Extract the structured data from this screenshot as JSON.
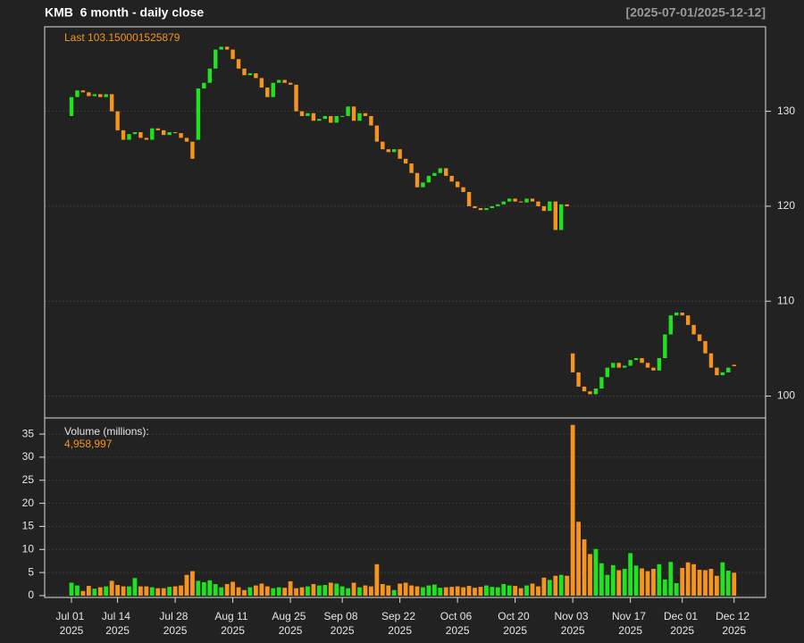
{
  "chart_data": {
    "type": "candlestick",
    "title": "KMB  6 month - daily close",
    "subtitle": "[2025-07-01/2025-12-12]",
    "annotation": "Last 103.150001525879",
    "up_color": "#1fe31f",
    "down_color": "#f7941d",
    "grid": true,
    "open": [
      129.5,
      131.5,
      132.2,
      132.0,
      131.6,
      131.8,
      131.5,
      131.8,
      130.0,
      128.0,
      127.0,
      127.6,
      127.8,
      127.2,
      127.0,
      128.2,
      128.0,
      127.5,
      127.8,
      127.7,
      127.2,
      126.8,
      127.0,
      132.4,
      133.0,
      134.5,
      136.5,
      136.8,
      136.5,
      135.5,
      134.5,
      133.8,
      134.0,
      133.5,
      132.5,
      131.5,
      133.0,
      133.3,
      133.0,
      132.8,
      130.0,
      129.5,
      129.8,
      129.0,
      129.2,
      129.5,
      128.8,
      129.5,
      129.5,
      130.5,
      129.0,
      129.8,
      129.5,
      128.5,
      126.8,
      126.0,
      125.7,
      126.0,
      125.0,
      124.5,
      123.5,
      122.0,
      122.5,
      123.2,
      123.5,
      124.0,
      123.2,
      122.6,
      122.0,
      121.5,
      120.0,
      119.8,
      119.6,
      119.8,
      120.0,
      120.2,
      120.5,
      120.8,
      120.5,
      120.4,
      120.8,
      120.5,
      120.0,
      119.5,
      120.5,
      117.5,
      120.2,
      104.5,
      102.5,
      101.0,
      100.5,
      100.2,
      100.8,
      102.0,
      103.0,
      103.5,
      103.0,
      103.2,
      103.8,
      104.0,
      103.5,
      103.0,
      102.7,
      104.0,
      106.5,
      108.5,
      108.8,
      108.5,
      107.5,
      106.5,
      105.8,
      104.5,
      103.0,
      102.2,
      102.5,
      103.3
    ],
    "close": [
      131.5,
      132.2,
      132.0,
      131.6,
      131.8,
      131.5,
      131.8,
      130.0,
      128.0,
      127.0,
      127.6,
      127.8,
      127.2,
      127.0,
      128.2,
      128.0,
      127.5,
      127.8,
      127.7,
      127.2,
      126.8,
      125.0,
      132.4,
      133.0,
      134.5,
      136.5,
      136.8,
      136.5,
      135.5,
      134.5,
      133.8,
      134.0,
      133.5,
      132.5,
      131.5,
      133.0,
      133.3,
      133.0,
      132.8,
      130.0,
      129.5,
      129.8,
      129.0,
      129.2,
      129.5,
      128.8,
      129.5,
      129.5,
      130.5,
      129.0,
      129.8,
      129.5,
      128.5,
      126.8,
      126.0,
      125.7,
      126.0,
      125.0,
      124.5,
      123.5,
      122.0,
      122.5,
      123.2,
      123.5,
      124.0,
      123.2,
      122.6,
      122.0,
      121.5,
      120.0,
      119.8,
      119.6,
      119.8,
      120.0,
      120.2,
      120.5,
      120.8,
      120.5,
      120.4,
      120.8,
      120.5,
      120.0,
      119.5,
      120.5,
      117.5,
      120.2,
      120.0,
      102.5,
      101.0,
      100.5,
      100.2,
      100.8,
      102.0,
      103.0,
      103.5,
      103.0,
      103.2,
      103.8,
      104.0,
      103.5,
      103.0,
      102.7,
      104.0,
      106.5,
      108.5,
      108.8,
      108.5,
      107.5,
      106.5,
      105.8,
      104.5,
      103.0,
      102.2,
      102.5,
      103.0,
      103.15
    ],
    "ylim": [
      97.7,
      138.9
    ],
    "yticks": [
      100,
      110,
      120,
      130
    ],
    "xticks": [
      {
        "value": 0,
        "label": "Jul 01 2025"
      },
      {
        "value": 8,
        "label": "Jul 14 2025"
      },
      {
        "value": 18,
        "label": "Jul 28 2025"
      },
      {
        "value": 28,
        "label": "Aug 11 2025"
      },
      {
        "value": 38,
        "label": "Aug 25 2025"
      },
      {
        "value": 47,
        "label": "Sep 08 2025"
      },
      {
        "value": 57,
        "label": "Sep 22 2025"
      },
      {
        "value": 67,
        "label": "Oct 06 2025"
      },
      {
        "value": 77,
        "label": "Oct 20 2025"
      },
      {
        "value": 87,
        "label": "Nov 03 2025"
      },
      {
        "value": 97,
        "label": "Nov 17 2025"
      },
      {
        "value": 106,
        "label": "Dec 01 2025"
      },
      {
        "value": 115,
        "label": "Dec 12 2025"
      }
    ],
    "volume": {
      "label": "Volume (millions):",
      "last_label": "4,958,997",
      "values": [
        2.8,
        2.2,
        1.0,
        2.1,
        1.5,
        1.8,
        2.0,
        3.2,
        2.3,
        2.0,
        2.0,
        3.8,
        2.0,
        2.0,
        1.8,
        1.6,
        1.6,
        1.9,
        2.0,
        2.2,
        4.5,
        5.3,
        3.2,
        2.9,
        3.3,
        2.5,
        1.8,
        2.5,
        3.0,
        1.8,
        1.2,
        1.8,
        2.2,
        2.6,
        2.0,
        1.6,
        1.8,
        1.7,
        3.1,
        1.6,
        1.8,
        2.0,
        2.5,
        2.2,
        2.3,
        2.8,
        2.6,
        2.0,
        1.6,
        2.8,
        1.8,
        2.2,
        2.0,
        6.8,
        2.5,
        2.2,
        1.2,
        2.6,
        2.8,
        2.2,
        2.0,
        1.8,
        2.2,
        2.4,
        1.7,
        1.8,
        1.9,
        2.0,
        1.8,
        2.1,
        1.7,
        1.9,
        2.2,
        1.9,
        1.8,
        2.5,
        2.2,
        2.1,
        1.6,
        2.2,
        2.6,
        2.0,
        3.9,
        3.4,
        4.3,
        4.5,
        4.3,
        37,
        16,
        12.2,
        9.0,
        10.1,
        7.0,
        4.5,
        6.6,
        5.5,
        5.8,
        9.2,
        6.5,
        5.9,
        5.3,
        5.8,
        6.8,
        3.5,
        7.3,
        2.7,
        6.0,
        7.2,
        6.8,
        5.6,
        5.5,
        5.8,
        4.3,
        7.2,
        5.4,
        4.958997
      ],
      "ylim": [
        -0.4,
        38.5
      ],
      "yticks": [
        0,
        5,
        10,
        15,
        20,
        25,
        30,
        35
      ]
    }
  }
}
